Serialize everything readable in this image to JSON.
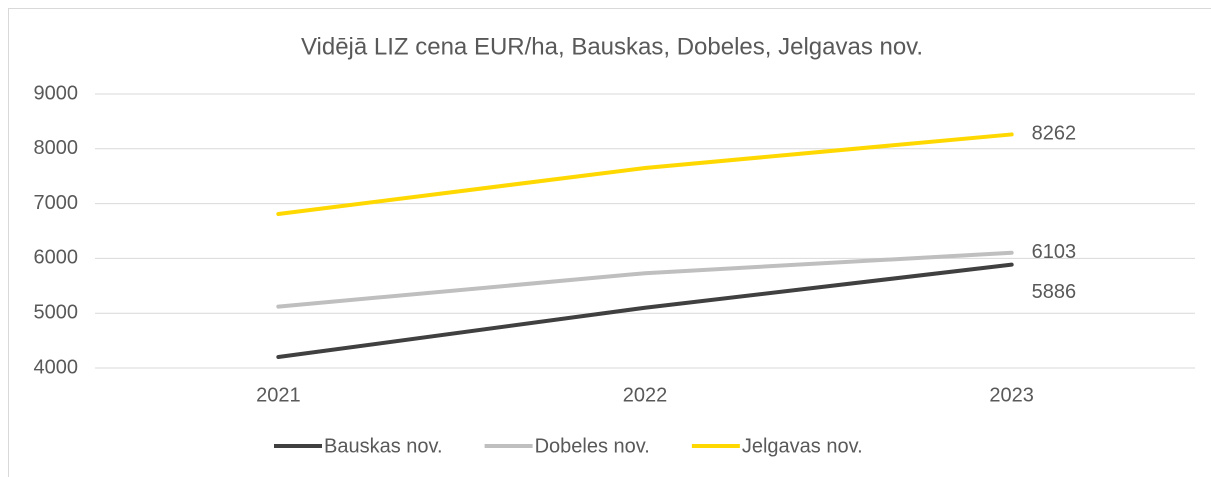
{
  "chart_data": {
    "type": "line",
    "title": "Vidējā LIZ cena EUR/ha, Bauskas, Dobeles, Jelgavas nov.",
    "categories": [
      "2021",
      "2022",
      "2023"
    ],
    "series": [
      {
        "name": "Bauskas nov.",
        "color": "#404040",
        "values": [
          4200,
          5100,
          5886
        ]
      },
      {
        "name": "Dobeles nov.",
        "color": "#bfbfbf",
        "values": [
          5120,
          5730,
          6103
        ]
      },
      {
        "name": "Jelgavas nov.",
        "color": "#ffd800",
        "values": [
          6810,
          7650,
          8262
        ]
      }
    ],
    "ylim": [
      4000,
      9000
    ],
    "yticks": [
      4000,
      5000,
      6000,
      7000,
      8000,
      9000
    ],
    "grid": true,
    "legend": "bottom"
  }
}
